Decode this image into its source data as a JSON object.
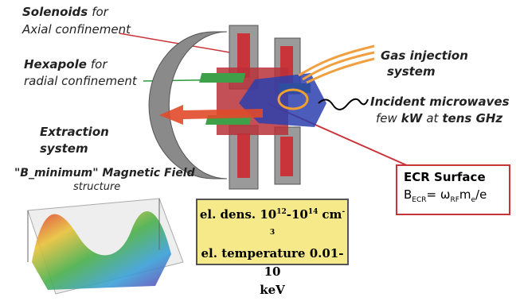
{
  "labels": {
    "solenoids": {
      "bold": "Solenoids",
      "rest": "for",
      "line2": "Axial confinement"
    },
    "hexapole": {
      "bold": "Hexapole",
      "rest": "for",
      "line2": "radial confinement"
    },
    "extraction": {
      "line1": "Extraction",
      "line2": "system"
    },
    "field": {
      "line1": "\"B_minimum\" Magnetic Field",
      "line2": "structure"
    },
    "gas": {
      "line1": "Gas injection",
      "line2": "system"
    },
    "microwaves": {
      "line1": "Incident microwaves",
      "line2": [
        "few",
        "kW",
        "at",
        "tens GHz"
      ]
    },
    "ecr": {
      "title": "ECR Surface",
      "formula": [
        "B",
        "ECR",
        "= ω",
        "RF",
        "m",
        "e",
        "/e"
      ]
    },
    "plasma": {
      "line1": [
        "el. dens. 10",
        "12",
        "-10",
        "14",
        "cm",
        "-3"
      ],
      "line2": "el. temperature 0.01-10",
      "line3": "keV"
    }
  }
}
